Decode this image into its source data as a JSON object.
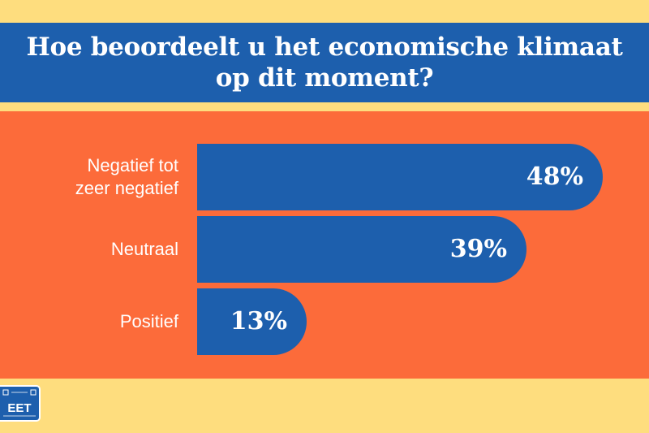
{
  "header": {
    "title": "Hoe beoordeelt u het economische klimaat op dit moment?"
  },
  "colors": {
    "background": "#fedd7e",
    "panel": "#fc6b3a",
    "bar": "#1d5fad",
    "text": "#ffffff"
  },
  "chart_data": {
    "type": "bar",
    "orientation": "horizontal",
    "title": "Hoe beoordeelt u het economische klimaat op dit moment?",
    "categories": [
      "Negatief tot zeer negatief",
      "Neutraal",
      "Positief"
    ],
    "values": [
      48,
      39,
      13
    ],
    "value_labels": [
      "48%",
      "39%",
      "13%"
    ],
    "unit": "%",
    "xlim": [
      0,
      48
    ],
    "grid": false,
    "legend": "none"
  },
  "logo": {
    "icon": "street-sign-logo-icon",
    "text": "EET"
  }
}
